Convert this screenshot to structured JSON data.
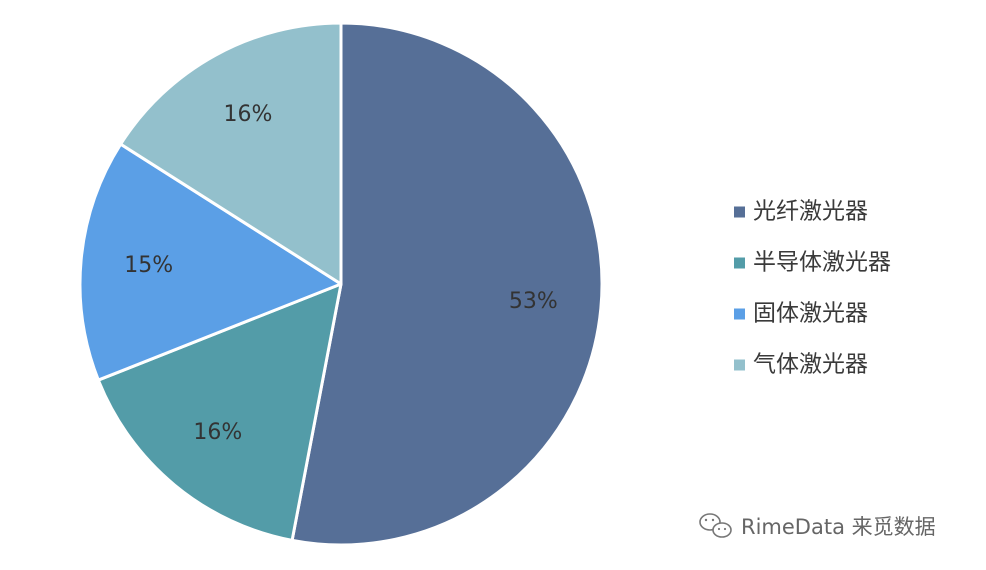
{
  "chart_data": {
    "type": "pie",
    "categories": [
      "光纤激光器",
      "半导体激光器",
      "固体激光器",
      "气体激光器"
    ],
    "values": [
      53,
      16,
      15,
      16
    ],
    "data_labels": [
      "53%",
      "16%",
      "15%",
      "16%"
    ],
    "colors": [
      "#566f97",
      "#539ca8",
      "#5b9fe6",
      "#93c0cc"
    ],
    "start_angle_deg": 0,
    "direction": "clockwise",
    "legend_position": "right",
    "title": "",
    "xlabel": "",
    "ylabel": ""
  },
  "watermark": {
    "text": "RimeData 来觅数据",
    "icon": "wechat-icon"
  }
}
